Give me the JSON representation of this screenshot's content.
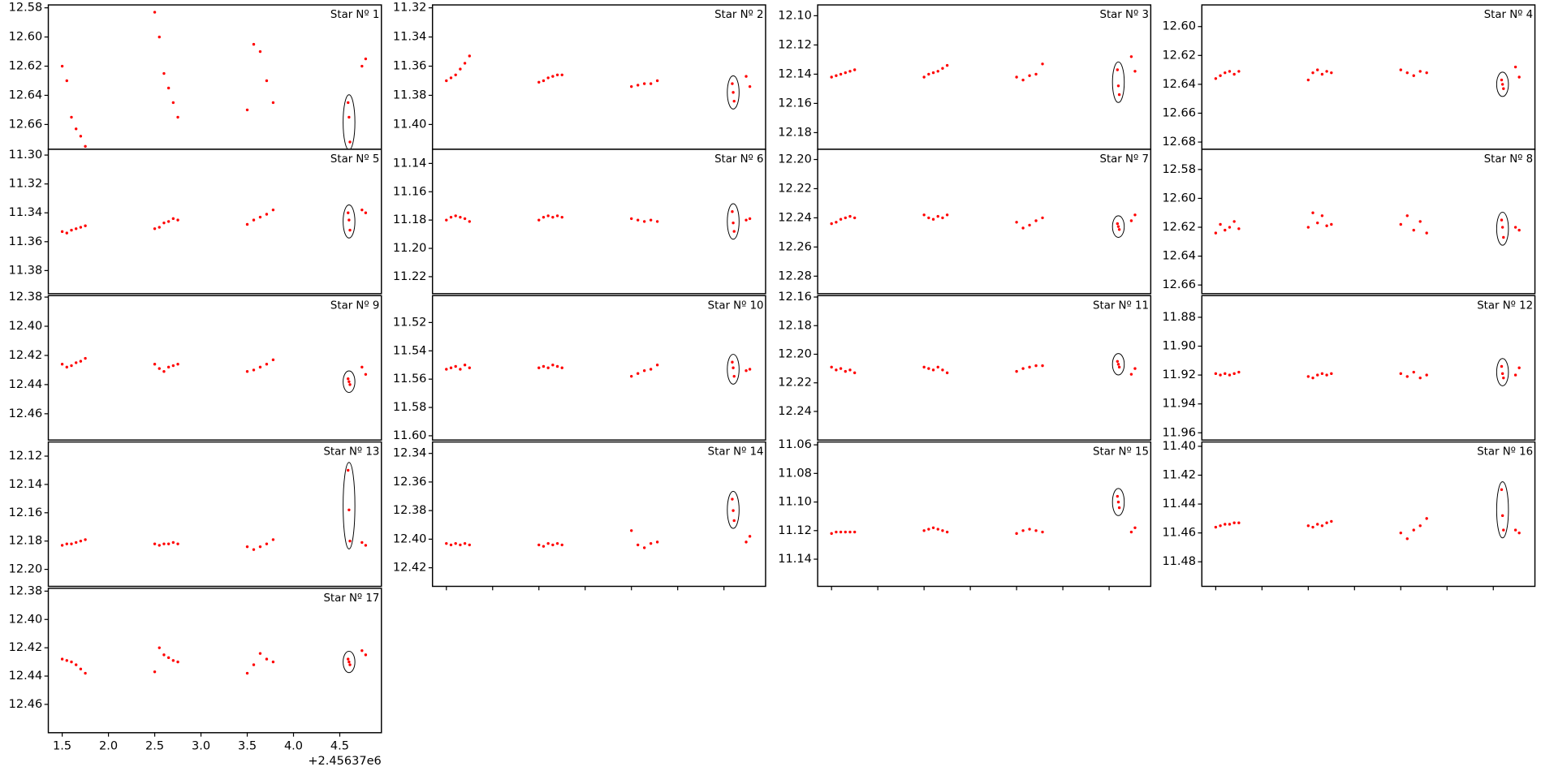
{
  "chart_data": {
    "type": "scatter-grid",
    "x": [
      1.5,
      1.55,
      1.6,
      1.65,
      1.7,
      1.75,
      2.5,
      2.55,
      2.6,
      2.65,
      2.7,
      2.75,
      3.5,
      3.57,
      3.64,
      3.71,
      3.78,
      4.59,
      4.6,
      4.61,
      4.74,
      4.78
    ],
    "xlim": [
      1.35,
      4.95
    ],
    "xticks": [
      1.5,
      {
        "value": 2,
        "label": "2.0"
      },
      2.5,
      {
        "value": 3,
        "label": "3.0"
      },
      3.5,
      {
        "value": 4,
        "label": "4.0"
      },
      4.5
    ],
    "x_offset_label": "+2.45637e6",
    "color": "#ff0000",
    "panels": [
      {
        "title": "Star Nº 1",
        "ylim": [
          12.677,
          12.578
        ],
        "yticks": [
          12.58,
          {
            "value": 12.6,
            "label": "12.60"
          },
          12.62,
          12.64,
          12.66
        ],
        "values": [
          12.62,
          12.63,
          12.655,
          12.663,
          12.668,
          12.675,
          12.583,
          12.6,
          12.625,
          12.635,
          12.645,
          12.655,
          12.65,
          12.605,
          12.61,
          12.63,
          12.645,
          12.645,
          12.655,
          12.672,
          12.62,
          12.615
        ]
      },
      {
        "title": "Star Nº 2",
        "ylim": [
          11.417,
          11.318
        ],
        "yticks": [
          11.32,
          11.34,
          11.36,
          11.38,
          {
            "value": 11.4,
            "label": "11.40"
          }
        ],
        "values": [
          11.37,
          11.368,
          11.366,
          11.362,
          11.358,
          11.353,
          11.371,
          11.37,
          11.368,
          11.367,
          11.366,
          11.366,
          11.374,
          11.373,
          11.372,
          11.372,
          11.37,
          11.372,
          11.378,
          11.384,
          11.367,
          11.374
        ]
      },
      {
        "title": "Star Nº 3",
        "ylim": [
          12.1914,
          12.0926
        ],
        "yticks": [
          {
            "value": 12.1,
            "label": "12.10"
          },
          12.12,
          12.14,
          12.16,
          12.18
        ],
        "values": [
          12.142,
          12.141,
          12.14,
          12.139,
          12.138,
          12.137,
          12.142,
          12.14,
          12.139,
          12.138,
          12.136,
          12.134,
          12.142,
          12.144,
          12.141,
          12.14,
          12.133,
          12.137,
          12.148,
          12.154,
          12.128,
          12.138
        ]
      },
      {
        "title": "Star Nº 4",
        "ylim": [
          12.685,
          12.585
        ],
        "yticks": [
          {
            "value": 12.6,
            "label": "12.60"
          },
          12.62,
          12.64,
          12.66,
          12.68
        ],
        "values": [
          12.636,
          12.634,
          12.632,
          12.631,
          12.633,
          12.631,
          12.637,
          12.632,
          12.63,
          12.633,
          12.631,
          12.632,
          12.63,
          12.632,
          12.634,
          12.631,
          12.632,
          12.637,
          12.64,
          12.643,
          12.628,
          12.635
        ]
      },
      {
        "title": "Star Nº 5",
        "ylim": [
          11.396,
          11.296
        ],
        "yticks": [
          {
            "value": 11.3,
            "label": "11.30"
          },
          11.32,
          11.34,
          11.36,
          11.38
        ],
        "values": [
          11.353,
          11.354,
          11.352,
          11.351,
          11.35,
          11.349,
          11.351,
          11.35,
          11.347,
          11.346,
          11.344,
          11.345,
          11.348,
          11.345,
          11.343,
          11.341,
          11.338,
          11.34,
          11.345,
          11.352,
          11.338,
          11.34
        ]
      },
      {
        "title": "Star Nº 6",
        "ylim": [
          11.232,
          11.13
        ],
        "yticks": [
          11.14,
          11.16,
          11.18,
          {
            "value": 11.2,
            "label": "11.20"
          },
          11.22
        ],
        "values": [
          11.18,
          11.178,
          11.177,
          11.178,
          11.179,
          11.181,
          11.18,
          11.178,
          11.177,
          11.178,
          11.177,
          11.178,
          11.179,
          11.18,
          11.181,
          11.18,
          11.181,
          11.174,
          11.182,
          11.188,
          11.18,
          11.179
        ]
      },
      {
        "title": "Star Nº 7",
        "ylim": [
          12.292,
          12.193
        ],
        "yticks": [
          {
            "value": 12.2,
            "label": "12.20"
          },
          12.22,
          12.24,
          12.26,
          12.28
        ],
        "values": [
          12.244,
          12.243,
          12.241,
          12.24,
          12.239,
          12.24,
          12.238,
          12.24,
          12.241,
          12.239,
          12.24,
          12.238,
          12.243,
          12.247,
          12.245,
          12.242,
          12.24,
          12.244,
          12.246,
          12.248,
          12.242,
          12.238
        ]
      },
      {
        "title": "Star Nº 8",
        "ylim": [
          12.666,
          12.566
        ],
        "yticks": [
          12.58,
          {
            "value": 12.6,
            "label": "12.60"
          },
          12.62,
          12.64,
          12.66
        ],
        "values": [
          12.624,
          12.618,
          12.622,
          12.62,
          12.616,
          12.621,
          12.62,
          12.61,
          12.617,
          12.612,
          12.619,
          12.618,
          12.618,
          12.612,
          12.622,
          12.616,
          12.624,
          12.615,
          12.62,
          12.627,
          12.62,
          12.622
        ]
      },
      {
        "title": "Star Nº 9",
        "ylim": [
          12.478,
          12.379
        ],
        "yticks": [
          12.38,
          {
            "value": 12.4,
            "label": "12.40"
          },
          12.42,
          12.44,
          12.46
        ],
        "values": [
          12.426,
          12.428,
          12.427,
          12.425,
          12.424,
          12.422,
          12.426,
          12.429,
          12.431,
          12.428,
          12.427,
          12.426,
          12.431,
          12.43,
          12.428,
          12.426,
          12.423,
          12.436,
          12.438,
          12.44,
          12.428,
          12.433
        ]
      },
      {
        "title": "Star Nº 10",
        "ylim": [
          11.603,
          11.501
        ],
        "yticks": [
          11.52,
          11.54,
          11.56,
          11.58,
          {
            "value": 11.6,
            "label": "11.60"
          }
        ],
        "values": [
          11.553,
          11.552,
          11.551,
          11.553,
          11.55,
          11.552,
          11.552,
          11.551,
          11.552,
          11.55,
          11.551,
          11.552,
          11.558,
          11.556,
          11.554,
          11.553,
          11.55,
          11.548,
          11.552,
          11.558,
          11.554,
          11.553
        ]
      },
      {
        "title": "Star Nº 11",
        "ylim": [
          12.26,
          12.159
        ],
        "yticks": [
          12.16,
          12.18,
          {
            "value": 12.2,
            "label": "12.20"
          },
          12.22,
          12.24
        ],
        "values": [
          12.209,
          12.211,
          12.21,
          12.212,
          12.211,
          12.213,
          12.209,
          12.21,
          12.211,
          12.209,
          12.211,
          12.213,
          12.212,
          12.21,
          12.209,
          12.208,
          12.208,
          12.205,
          12.207,
          12.209,
          12.214,
          12.21
        ]
      },
      {
        "title": "Star Nº 12",
        "ylim": [
          11.965,
          11.865
        ],
        "yticks": [
          11.88,
          {
            "value": 11.9,
            "label": "11.90"
          },
          11.92,
          11.94,
          11.96
        ],
        "values": [
          11.919,
          11.92,
          11.919,
          11.92,
          11.919,
          11.918,
          11.921,
          11.922,
          11.92,
          11.919,
          11.92,
          11.919,
          11.919,
          11.921,
          11.918,
          11.922,
          11.92,
          11.914,
          11.919,
          11.922,
          11.92,
          11.915
        ]
      },
      {
        "title": "Star Nº 13",
        "ylim": [
          12.212,
          12.11
        ],
        "yticks": [
          12.12,
          12.14,
          12.16,
          12.18,
          {
            "value": 12.2,
            "label": "12.20"
          }
        ],
        "values": [
          12.183,
          12.182,
          12.182,
          12.181,
          12.18,
          12.179,
          12.182,
          12.183,
          12.182,
          12.182,
          12.181,
          12.182,
          12.184,
          12.186,
          12.184,
          12.182,
          12.179,
          12.13,
          12.158,
          12.18,
          12.181,
          12.183
        ]
      },
      {
        "title": "Star Nº 14",
        "ylim": [
          12.433,
          12.332
        ],
        "yticks": [
          12.34,
          12.36,
          12.38,
          {
            "value": 12.4,
            "label": "12.40"
          },
          12.42
        ],
        "values": [
          12.403,
          12.404,
          12.403,
          12.404,
          12.403,
          12.404,
          12.404,
          12.405,
          12.403,
          12.404,
          12.403,
          12.404,
          12.394,
          12.404,
          12.406,
          12.403,
          12.402,
          12.372,
          12.38,
          12.387,
          12.402,
          12.398
        ]
      },
      {
        "title": "Star Nº 15",
        "ylim": [
          11.159,
          11.058
        ],
        "yticks": [
          11.06,
          11.08,
          {
            "value": 11.1,
            "label": "11.10"
          },
          11.12,
          11.14
        ],
        "values": [
          11.122,
          11.121,
          11.121,
          11.121,
          11.121,
          11.121,
          11.12,
          11.119,
          11.118,
          11.119,
          11.12,
          11.121,
          11.122,
          11.12,
          11.119,
          11.12,
          11.121,
          11.096,
          11.1,
          11.104,
          11.121,
          11.118
        ]
      },
      {
        "title": "Star Nº 16",
        "ylim": [
          11.497,
          11.397
        ],
        "yticks": [
          {
            "value": 11.4,
            "label": "11.40"
          },
          11.42,
          11.44,
          11.46,
          11.48
        ],
        "values": [
          11.456,
          11.455,
          11.454,
          11.454,
          11.453,
          11.453,
          11.455,
          11.456,
          11.454,
          11.455,
          11.453,
          11.452,
          11.46,
          11.464,
          11.458,
          11.455,
          11.45,
          11.43,
          11.448,
          11.458,
          11.458,
          11.46
        ]
      },
      {
        "title": "Star Nº 17",
        "ylim": [
          12.48,
          12.378
        ],
        "yticks": [
          12.38,
          {
            "value": 12.4,
            "label": "12.40"
          },
          12.42,
          12.44,
          12.46
        ],
        "values": [
          12.428,
          12.429,
          12.43,
          12.432,
          12.435,
          12.438,
          12.437,
          12.42,
          12.425,
          12.427,
          12.429,
          12.43,
          12.438,
          12.432,
          12.424,
          12.428,
          12.43,
          12.428,
          12.43,
          12.432,
          12.422,
          12.425
        ]
      }
    ]
  }
}
